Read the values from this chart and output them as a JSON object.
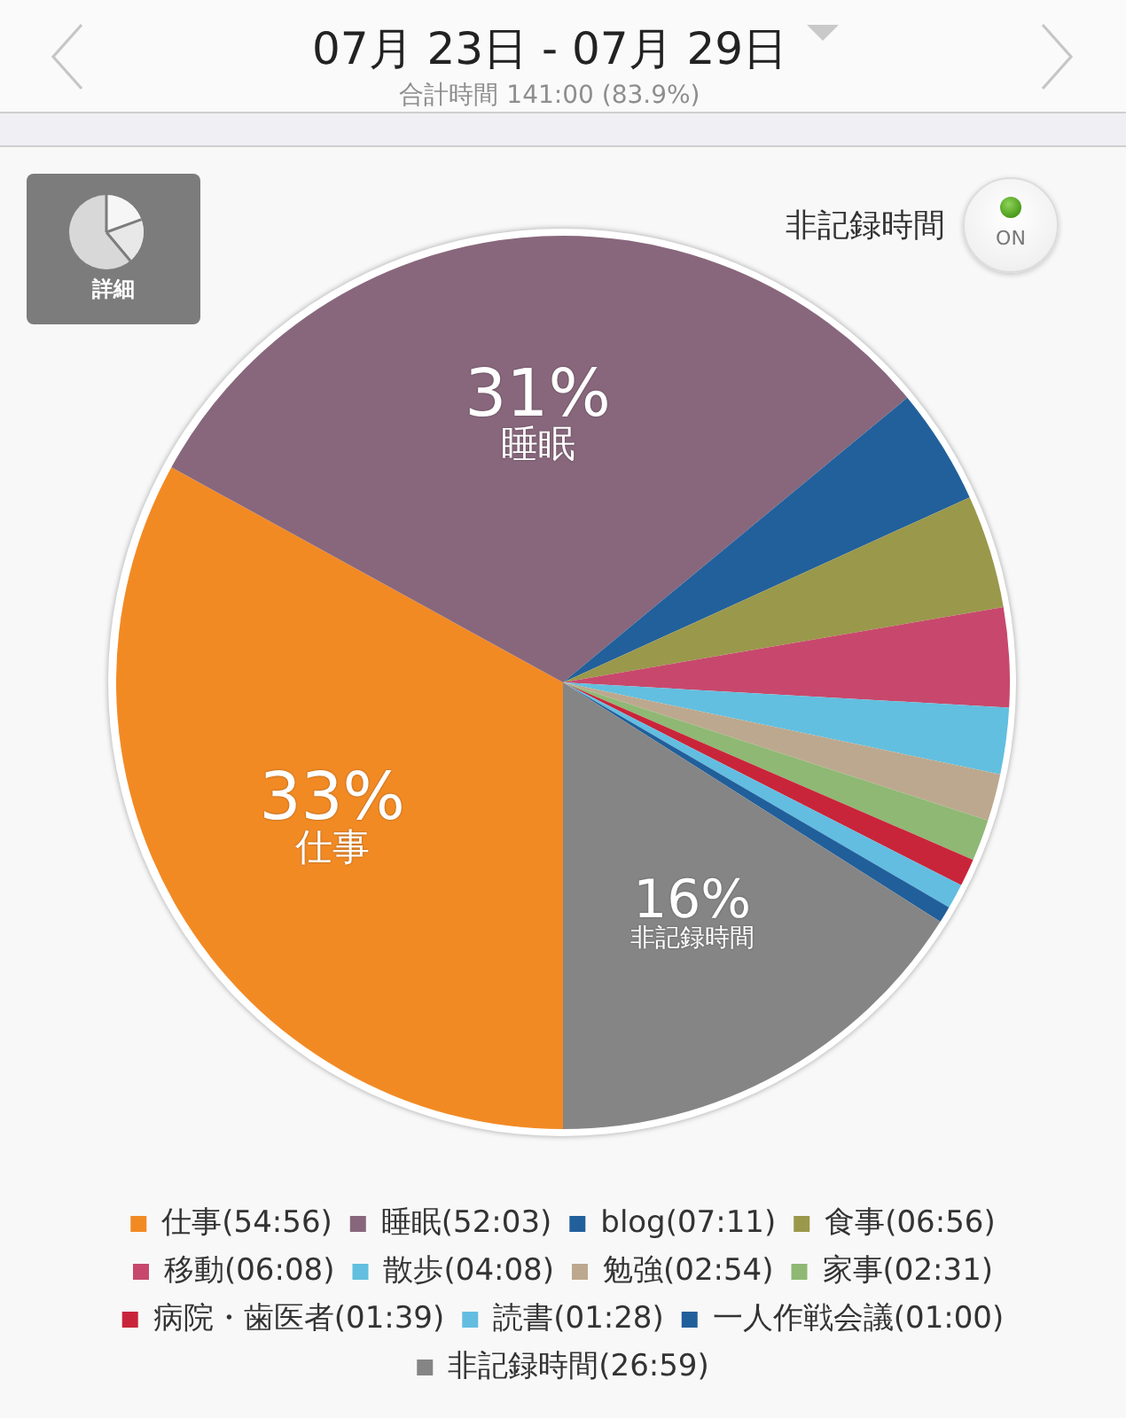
{
  "chart_data": {
    "type": "pie",
    "title": "07月 23日 - 07月 29日",
    "subtitle": "合計時間 141:00 (83.9%)",
    "categories": [
      "仕事(54:56)",
      "睡眠(52:03)",
      "blog(07:11)",
      "食事(06:56)",
      "移動(06:08)",
      "散歩(04:08)",
      "勉強(02:54)",
      "家事(02:31)",
      "病院・歯医者(01:39)",
      "読書(01:28)",
      "一人作戦会議(01:00)",
      "非記録時間(26:59)"
    ],
    "values": [
      33,
      31,
      4.2,
      4.1,
      3.6,
      2.4,
      1.7,
      1.5,
      1.0,
      0.9,
      0.6,
      16
    ],
    "colors": [
      "#f28a24",
      "#88677c",
      "#22609b",
      "#9a984a",
      "#c7486c",
      "#62bfdf",
      "#bca88e",
      "#8fb874",
      "#c9253a",
      "#63bde0",
      "#215f9b",
      "#858585"
    ],
    "value_labels": [
      "33%",
      "31%",
      null,
      null,
      null,
      null,
      null,
      null,
      null,
      null,
      null,
      "16%"
    ],
    "legend": "bottom",
    "annotations": [
      "詳細",
      "非記録時間",
      "ON",
      "仕事",
      "睡眠",
      "非記録時間"
    ]
  }
}
